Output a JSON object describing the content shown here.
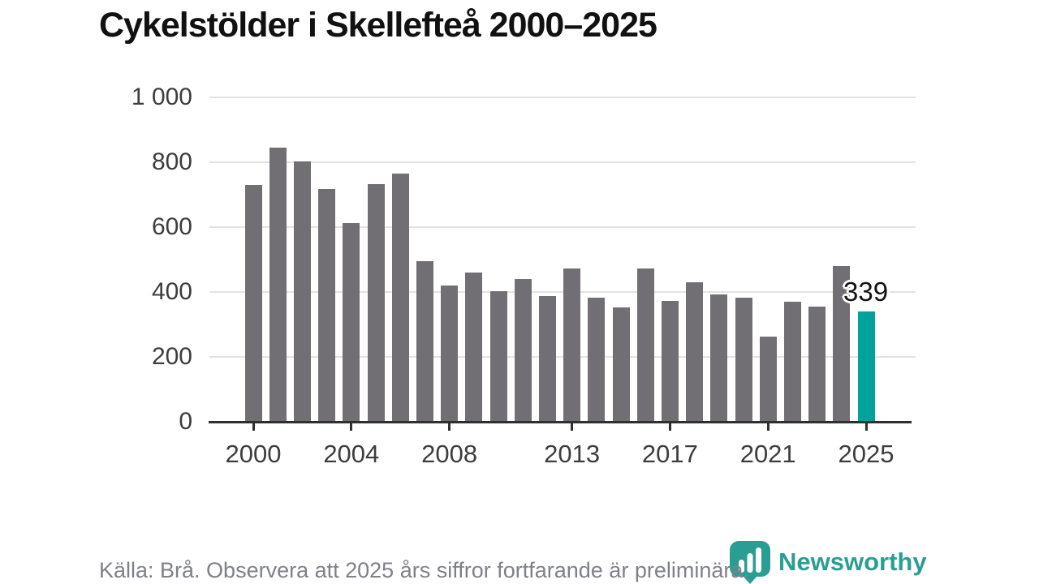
{
  "title": "Cykelstölder i Skellefteå 2000–2025",
  "footer": {
    "source_note": "Källa: Brå. Observera att 2025 års siffror fortfarande är preliminära."
  },
  "branding": {
    "logo_text": "Newsworthy",
    "logo_icon": "newsworthy-pin-bar-chart-icon",
    "logo_color": "#2b9e93"
  },
  "chart_data": {
    "type": "bar",
    "title": "Cykelstölder i Skellefteå 2000–2025",
    "xlabel": "",
    "ylabel": "",
    "ylim": [
      0,
      1000
    ],
    "grid": "horizontal",
    "legend": "none",
    "years": [
      2000,
      2001,
      2002,
      2003,
      2004,
      2005,
      2006,
      2007,
      2008,
      2009,
      2010,
      2011,
      2012,
      2013,
      2014,
      2015,
      2016,
      2017,
      2018,
      2019,
      2020,
      2021,
      2022,
      2023,
      2024,
      2025
    ],
    "values": [
      731,
      844,
      803,
      718,
      613,
      733,
      766,
      496,
      419,
      459,
      403,
      439,
      388,
      472,
      382,
      353,
      472,
      373,
      431,
      392,
      383,
      262,
      370,
      355,
      479,
      339
    ],
    "highlight": {
      "year": 2025,
      "value": 339,
      "label": "339"
    },
    "y_ticks": [
      {
        "value": 0,
        "label": "0"
      },
      {
        "value": 200,
        "label": "200"
      },
      {
        "value": 400,
        "label": "400"
      },
      {
        "value": 600,
        "label": "600"
      },
      {
        "value": 800,
        "label": "800"
      },
      {
        "value": 1000,
        "label": "1 000"
      }
    ],
    "x_ticks": [
      2000,
      2004,
      2008,
      2013,
      2017,
      2021,
      2025
    ],
    "colors": {
      "bar": "#716f74",
      "highlight": "#00a39b",
      "grid": "#e3e3e3",
      "axis": "#2f2f2f",
      "tick_label": "#3d3d3d",
      "annotation": "#111111"
    }
  }
}
